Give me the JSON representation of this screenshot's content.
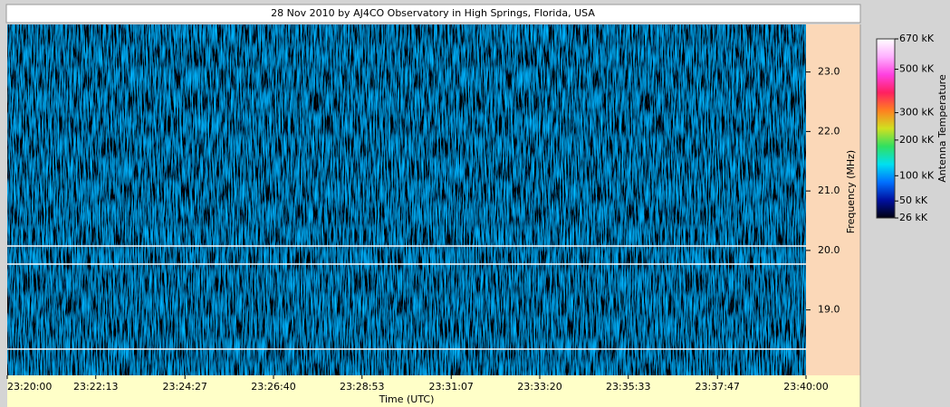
{
  "chart_data": {
    "type": "heatmap",
    "title": "28 Nov 2010 by AJ4CO Observatory in High Springs, Florida, USA",
    "xlabel": "Time (UTC)",
    "ylabel": "Frequency (MHz)",
    "colorbar_label": "Antenna Temperature",
    "xlim": [
      "23:20:00",
      "23:40:00"
    ],
    "xticks": [
      "23:20:00",
      "23:22:13",
      "23:24:27",
      "23:26:40",
      "23:28:53",
      "23:31:07",
      "23:33:20",
      "23:35:33",
      "23:37:47",
      "23:40:00"
    ],
    "ylim": [
      17.9,
      23.8
    ],
    "yticks": [
      {
        "value": 19,
        "label": "19.0"
      },
      {
        "value": 20,
        "label": "20.0"
      },
      {
        "value": 21,
        "label": "21.0"
      },
      {
        "value": 22,
        "label": "22.0"
      },
      {
        "value": 23,
        "label": "23.0"
      }
    ],
    "clim": [
      26,
      670
    ],
    "cscale": "sqrt",
    "cticks": [
      {
        "value": 26,
        "label": "26 kK"
      },
      {
        "value": 50,
        "label": "50 kK"
      },
      {
        "value": 100,
        "label": "100 kK"
      },
      {
        "value": 200,
        "label": "200 kK"
      },
      {
        "value": 300,
        "label": "300 kK"
      },
      {
        "value": 500,
        "label": "500 kK"
      },
      {
        "value": 670,
        "label": "670 kK"
      }
    ],
    "colorscale": [
      "#000010",
      "#0010a0",
      "#0070ff",
      "#00e0f0",
      "#30e060",
      "#d0e020",
      "#ff8020",
      "#ff2060",
      "#ff40e0",
      "#ffb0ff",
      "#ffffff"
    ]
  }
}
